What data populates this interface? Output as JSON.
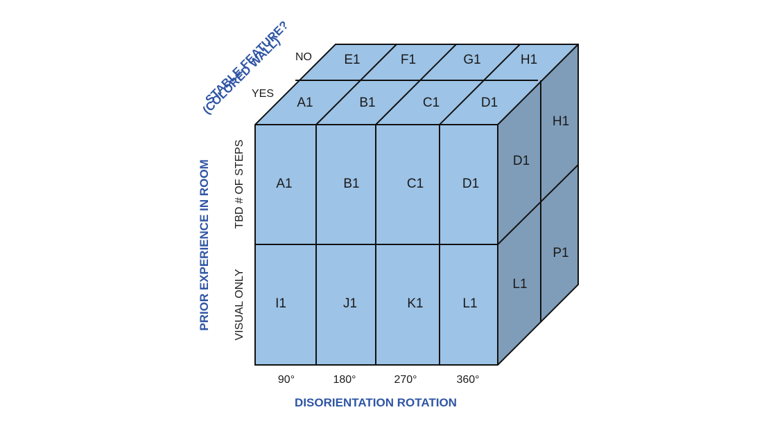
{
  "colors": {
    "front": "#9dc3e6",
    "top": "#9dc3e6",
    "side": "#7f9db9",
    "line": "#111111",
    "axis_title": "#2f55a4"
  },
  "axes": {
    "x_title": "DISORIENTATION ROTATION",
    "y_title": "PRIOR EXPERIENCE IN ROOM",
    "z_title_line1": "STABLE FEATURE?",
    "z_title_line2": "(COLORED WALL)",
    "x_ticks": [
      "90°",
      "180°",
      "270°",
      "360°"
    ],
    "y_ticks": [
      "TBD # OF STEPS",
      "VISUAL ONLY"
    ],
    "z_ticks": [
      "NO",
      "YES"
    ]
  },
  "cube": {
    "front_top_row": [
      "A1",
      "B1",
      "C1",
      "D1"
    ],
    "front_bottom_row": [
      "I1",
      "J1",
      "K1",
      "L1"
    ],
    "top_back_row": [
      "E1",
      "F1",
      "G1",
      "H1"
    ],
    "top_front_row": [
      "A1",
      "B1",
      "C1",
      "D1"
    ],
    "side_top": [
      "D1",
      "H1"
    ],
    "side_bottom": [
      "L1",
      "P1"
    ]
  }
}
